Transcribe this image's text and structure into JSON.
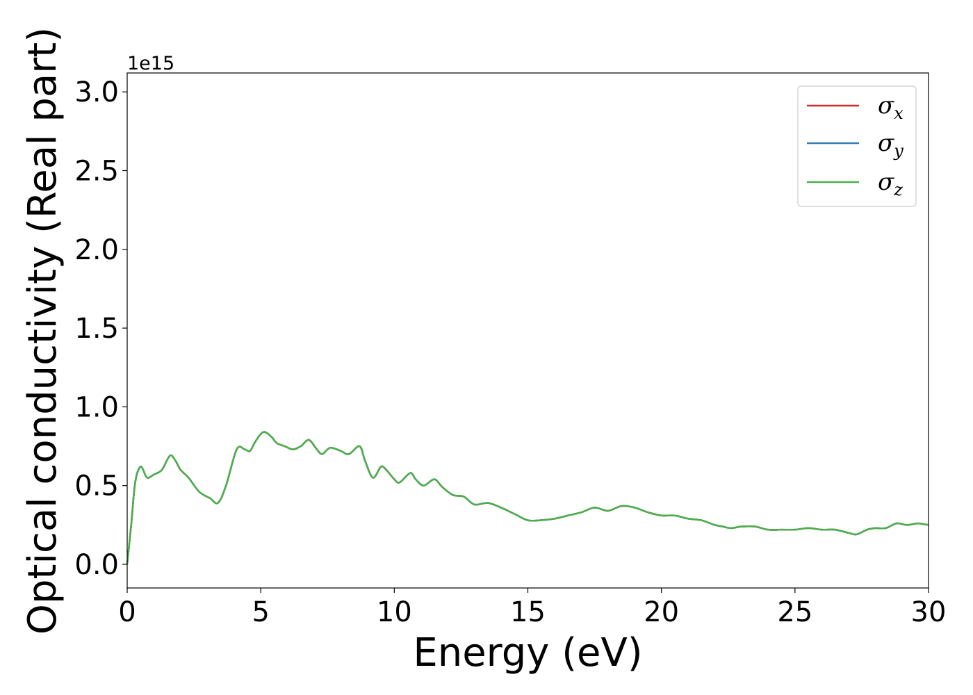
{
  "chart_data": {
    "type": "line",
    "title": "",
    "xlabel": "Energy (eV)",
    "ylabel": "Optical conductivity (Real part)",
    "y_offset_label": "1e15",
    "xlim": [
      0,
      30
    ],
    "ylim": [
      -0.15,
      3.12
    ],
    "xticks": [
      0,
      5,
      10,
      15,
      20,
      25,
      30
    ],
    "xtick_labels": [
      "0",
      "5",
      "10",
      "15",
      "20",
      "25",
      "30"
    ],
    "yticks": [
      0.0,
      0.5,
      1.0,
      1.5,
      2.0,
      2.5,
      3.0
    ],
    "ytick_labels": [
      "0.0",
      "0.5",
      "1.0",
      "1.5",
      "2.0",
      "2.5",
      "3.0"
    ],
    "grid": false,
    "legend": {
      "position": "top-right"
    },
    "x": [
      0.0,
      0.15,
      0.3,
      0.5,
      0.7,
      0.8,
      1.0,
      1.3,
      1.6,
      1.8,
      2.0,
      2.3,
      2.7,
      3.1,
      3.4,
      3.7,
      4.1,
      4.4,
      4.6,
      4.8,
      5.1,
      5.4,
      5.6,
      5.9,
      6.2,
      6.5,
      6.8,
      7.1,
      7.3,
      7.6,
      8.0,
      8.3,
      8.7,
      8.9,
      9.2,
      9.5,
      9.7,
      10.0,
      10.2,
      10.6,
      10.8,
      11.1,
      11.5,
      11.8,
      12.2,
      12.6,
      13.0,
      13.5,
      14.0,
      14.5,
      15.0,
      15.5,
      16.0,
      16.5,
      17.0,
      17.5,
      18.0,
      18.5,
      19.0,
      19.5,
      20.0,
      20.5,
      21.0,
      21.5,
      22.0,
      22.3,
      22.6,
      23.0,
      23.5,
      24.0,
      24.5,
      25.0,
      25.5,
      26.0,
      26.5,
      27.0,
      27.3,
      27.7,
      28.0,
      28.4,
      28.8,
      29.2,
      29.6,
      30.0
    ],
    "series": [
      {
        "name": "σx",
        "legend_symbol": "σ",
        "legend_sub": "x",
        "color": "#d62728",
        "values": [
          0.0,
          0.25,
          0.52,
          0.62,
          0.56,
          0.55,
          0.57,
          0.6,
          0.69,
          0.66,
          0.6,
          0.55,
          0.46,
          0.42,
          0.39,
          0.5,
          0.73,
          0.73,
          0.72,
          0.78,
          0.84,
          0.81,
          0.77,
          0.75,
          0.73,
          0.75,
          0.79,
          0.73,
          0.7,
          0.74,
          0.72,
          0.7,
          0.75,
          0.66,
          0.55,
          0.62,
          0.6,
          0.54,
          0.52,
          0.58,
          0.54,
          0.5,
          0.54,
          0.49,
          0.44,
          0.43,
          0.38,
          0.39,
          0.36,
          0.32,
          0.28,
          0.28,
          0.29,
          0.31,
          0.33,
          0.36,
          0.34,
          0.37,
          0.36,
          0.33,
          0.31,
          0.31,
          0.29,
          0.28,
          0.25,
          0.24,
          0.23,
          0.24,
          0.24,
          0.22,
          0.22,
          0.22,
          0.23,
          0.22,
          0.22,
          0.2,
          0.19,
          0.22,
          0.23,
          0.23,
          0.26,
          0.25,
          0.26,
          0.25
        ]
      },
      {
        "name": "σy",
        "legend_symbol": "σ",
        "legend_sub": "y",
        "color": "#377eb8",
        "values": [
          0.0,
          0.25,
          0.52,
          0.62,
          0.56,
          0.55,
          0.57,
          0.6,
          0.69,
          0.66,
          0.6,
          0.55,
          0.46,
          0.42,
          0.39,
          0.5,
          0.73,
          0.73,
          0.72,
          0.78,
          0.84,
          0.81,
          0.77,
          0.75,
          0.73,
          0.75,
          0.79,
          0.73,
          0.7,
          0.74,
          0.72,
          0.7,
          0.75,
          0.66,
          0.55,
          0.62,
          0.6,
          0.54,
          0.52,
          0.58,
          0.54,
          0.5,
          0.54,
          0.49,
          0.44,
          0.43,
          0.38,
          0.39,
          0.36,
          0.32,
          0.28,
          0.28,
          0.29,
          0.31,
          0.33,
          0.36,
          0.34,
          0.37,
          0.36,
          0.33,
          0.31,
          0.31,
          0.29,
          0.28,
          0.25,
          0.24,
          0.23,
          0.24,
          0.24,
          0.22,
          0.22,
          0.22,
          0.23,
          0.22,
          0.22,
          0.2,
          0.19,
          0.22,
          0.23,
          0.23,
          0.26,
          0.25,
          0.26,
          0.25
        ]
      },
      {
        "name": "σz",
        "legend_symbol": "σ",
        "legend_sub": "z",
        "color": "#4daf4a",
        "values": [
          0.0,
          0.25,
          0.52,
          0.62,
          0.56,
          0.55,
          0.57,
          0.6,
          0.69,
          0.66,
          0.6,
          0.55,
          0.46,
          0.42,
          0.39,
          0.5,
          0.73,
          0.73,
          0.72,
          0.78,
          0.84,
          0.81,
          0.77,
          0.75,
          0.73,
          0.75,
          0.79,
          0.73,
          0.7,
          0.74,
          0.72,
          0.7,
          0.75,
          0.66,
          0.55,
          0.62,
          0.6,
          0.54,
          0.52,
          0.58,
          0.54,
          0.5,
          0.54,
          0.49,
          0.44,
          0.43,
          0.38,
          0.39,
          0.36,
          0.32,
          0.28,
          0.28,
          0.29,
          0.31,
          0.33,
          0.36,
          0.34,
          0.37,
          0.36,
          0.33,
          0.31,
          0.31,
          0.29,
          0.28,
          0.25,
          0.24,
          0.23,
          0.24,
          0.24,
          0.22,
          0.22,
          0.22,
          0.23,
          0.22,
          0.22,
          0.2,
          0.19,
          0.22,
          0.23,
          0.23,
          0.26,
          0.25,
          0.26,
          0.25
        ]
      }
    ]
  }
}
